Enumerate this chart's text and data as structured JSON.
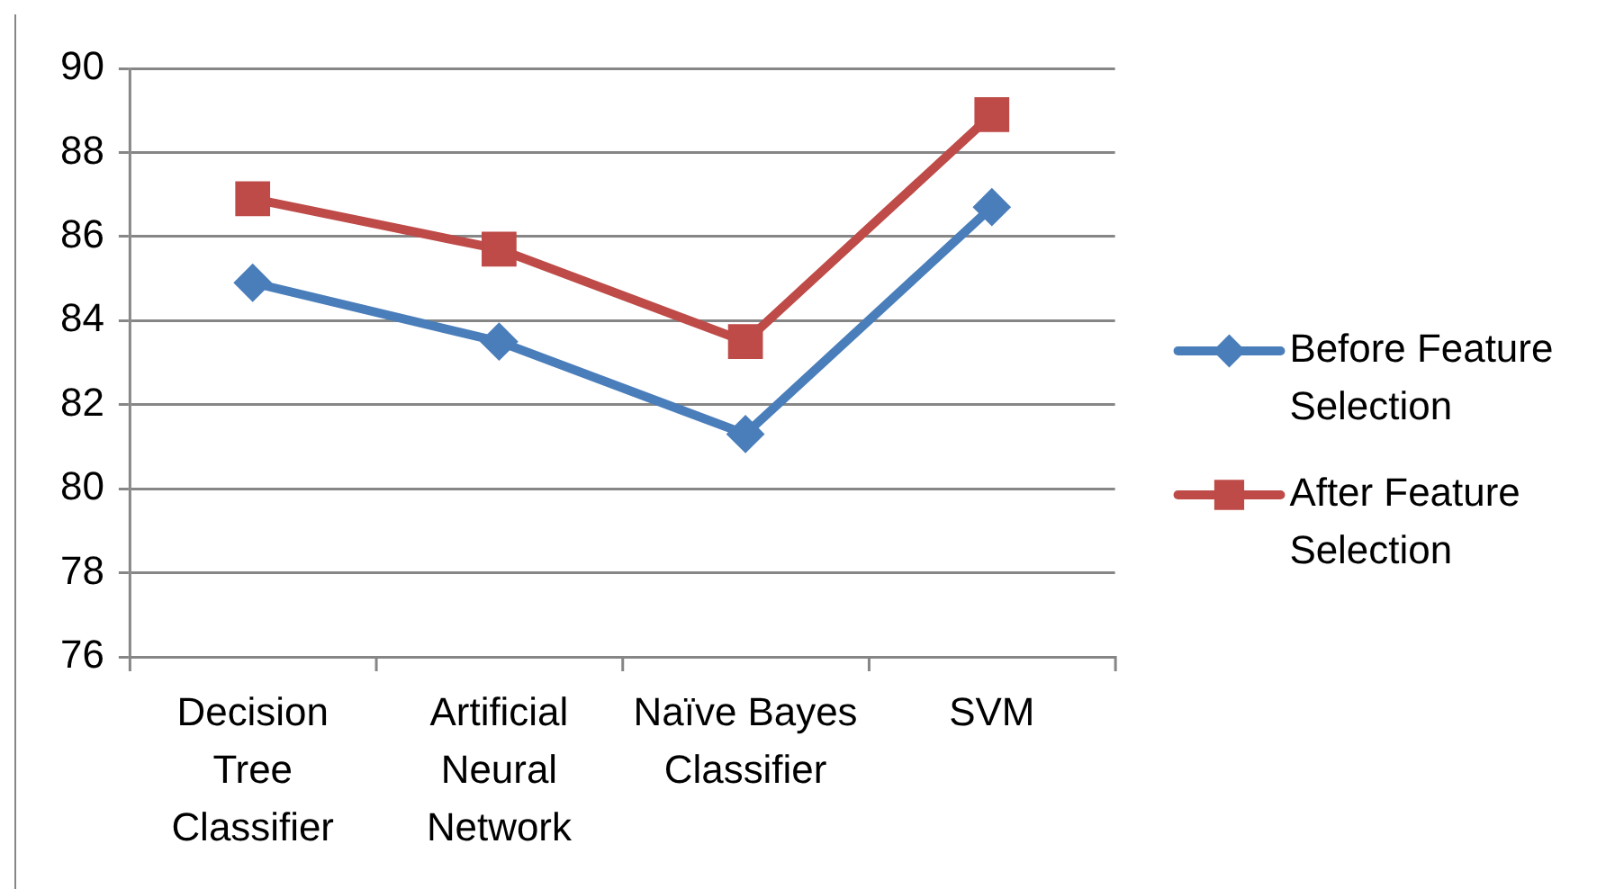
{
  "chart_data": {
    "type": "line",
    "categories": [
      "Decision Tree Classifier",
      "Artificial Neural Network",
      "Naïve Bayes Classifier",
      "SVM"
    ],
    "series": [
      {
        "name": "Before Feature Selection",
        "color": "#4a7ebb",
        "marker": "diamond",
        "values": [
          84.9,
          83.5,
          81.3,
          86.7
        ]
      },
      {
        "name": "After Feature Selection",
        "color": "#be4b48",
        "marker": "square",
        "values": [
          86.9,
          85.7,
          83.5,
          88.9
        ]
      }
    ],
    "ylim": [
      76,
      90
    ],
    "yticks": [
      76,
      78,
      80,
      82,
      84,
      86,
      88,
      90
    ],
    "grid": "y",
    "legend": "right"
  }
}
